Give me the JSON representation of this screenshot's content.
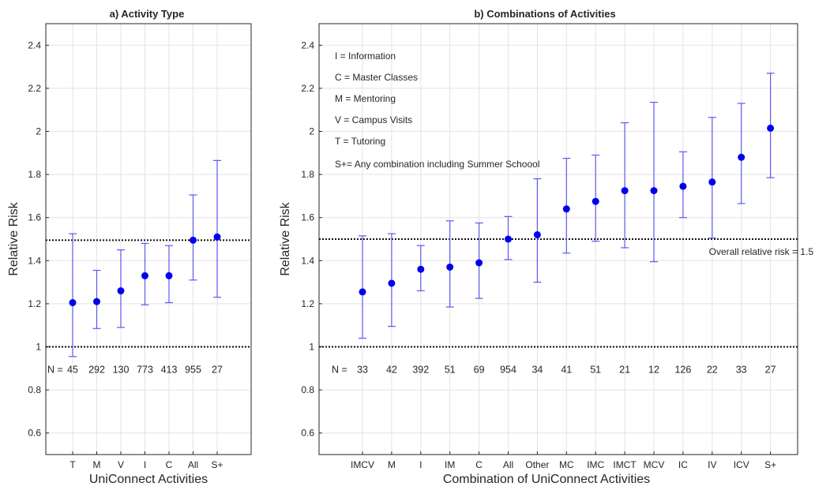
{
  "chart_data": [
    {
      "type": "scatter",
      "title": "a) Activity Type",
      "xlabel": "UniConnect Activities",
      "ylabel": "Relative Risk",
      "ylim": [
        0.5,
        2.5
      ],
      "yticks": [
        0.6,
        0.8,
        1,
        1.2,
        1.4,
        1.6,
        1.8,
        2,
        2.2,
        2.4
      ],
      "ytick_labels": [
        "0.6",
        "0.8",
        "1",
        "1.2",
        "1.4",
        "1.6",
        "1.8",
        "2",
        "2.2",
        "2.4"
      ],
      "grid": true,
      "categories": [
        "T",
        "M",
        "V",
        "I",
        "C",
        "All",
        "S+"
      ],
      "values": [
        1.205,
        1.21,
        1.26,
        1.33,
        1.33,
        1.495,
        1.51
      ],
      "lower": [
        0.955,
        1.085,
        1.09,
        1.195,
        1.205,
        1.31,
        1.23
      ],
      "upper": [
        1.525,
        1.355,
        1.45,
        1.48,
        1.47,
        1.705,
        1.865
      ],
      "counts_prefix": "N =",
      "counts": [
        "45",
        "292",
        "130",
        "773",
        "413",
        "955",
        "27"
      ],
      "reference_lines": [
        1.0,
        1.495
      ],
      "marker_color": "#0000ee",
      "line_color": "#5a5af0"
    },
    {
      "type": "scatter",
      "title": "b) Combinations of Activities",
      "xlabel": "Combination of UniConnect Activities",
      "ylabel": "Relative Risk",
      "ylim": [
        0.5,
        2.5
      ],
      "yticks": [
        0.6,
        0.8,
        1,
        1.2,
        1.4,
        1.6,
        1.8,
        2,
        2.2,
        2.4
      ],
      "ytick_labels": [
        "0.6",
        "0.8",
        "1",
        "1.2",
        "1.4",
        "1.6",
        "1.8",
        "2",
        "2.2",
        "2.4"
      ],
      "grid": true,
      "categories": [
        "IMCV",
        "M",
        "I",
        "IM",
        "C",
        "All",
        "Other",
        "MC",
        "IMC",
        "IMCT",
        "MCV",
        "IC",
        "IV",
        "ICV",
        "S+"
      ],
      "values": [
        1.255,
        1.295,
        1.36,
        1.37,
        1.39,
        1.5,
        1.52,
        1.64,
        1.675,
        1.725,
        1.725,
        1.745,
        1.765,
        1.88,
        2.015
      ],
      "lower": [
        1.04,
        1.095,
        1.26,
        1.185,
        1.225,
        1.405,
        1.3,
        1.435,
        1.49,
        1.46,
        1.395,
        1.6,
        1.505,
        1.665,
        1.785
      ],
      "upper": [
        1.515,
        1.525,
        1.47,
        1.585,
        1.575,
        1.605,
        1.78,
        1.875,
        1.89,
        2.04,
        2.135,
        1.905,
        2.065,
        2.13,
        2.27
      ],
      "counts_prefix": "N =",
      "counts": [
        "33",
        "42",
        "392",
        "51",
        "69",
        "954",
        "34",
        "41",
        "51",
        "21",
        "12",
        "126",
        "22",
        "33",
        "27"
      ],
      "reference_lines": [
        1.0,
        1.5
      ],
      "reference_label": "Overall relative risk = 1.5",
      "legend_text": [
        "I = Information",
        "C = Master Classes",
        "M = Mentoring",
        "V = Campus Visits",
        "T = Tutoring",
        "S+= Any combination including Summer Schoool"
      ],
      "marker_color": "#0000ee",
      "line_color": "#5a5af0"
    }
  ]
}
